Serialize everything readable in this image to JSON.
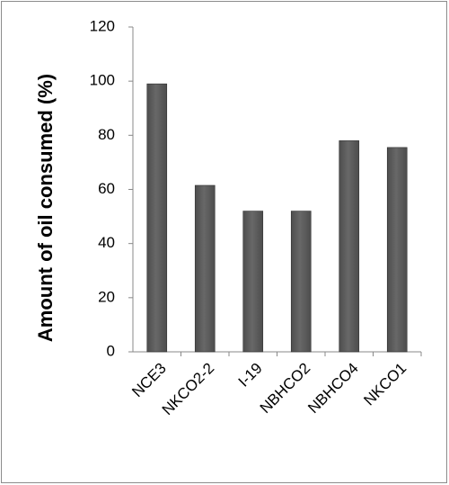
{
  "chart_data": {
    "type": "bar",
    "y_label": "Amount of oil consumed (%)",
    "categories": [
      "NCE3",
      "NKCO2-2",
      "I-19",
      "NBHCO2",
      "NBHCO4",
      "NKCO1"
    ],
    "values": [
      99,
      61.5,
      52,
      52,
      78,
      75.5
    ],
    "color": "#4d4d4d",
    "ylim": [
      0,
      120
    ],
    "yticks": [
      0,
      20,
      40,
      60,
      80,
      100,
      120
    ]
  }
}
